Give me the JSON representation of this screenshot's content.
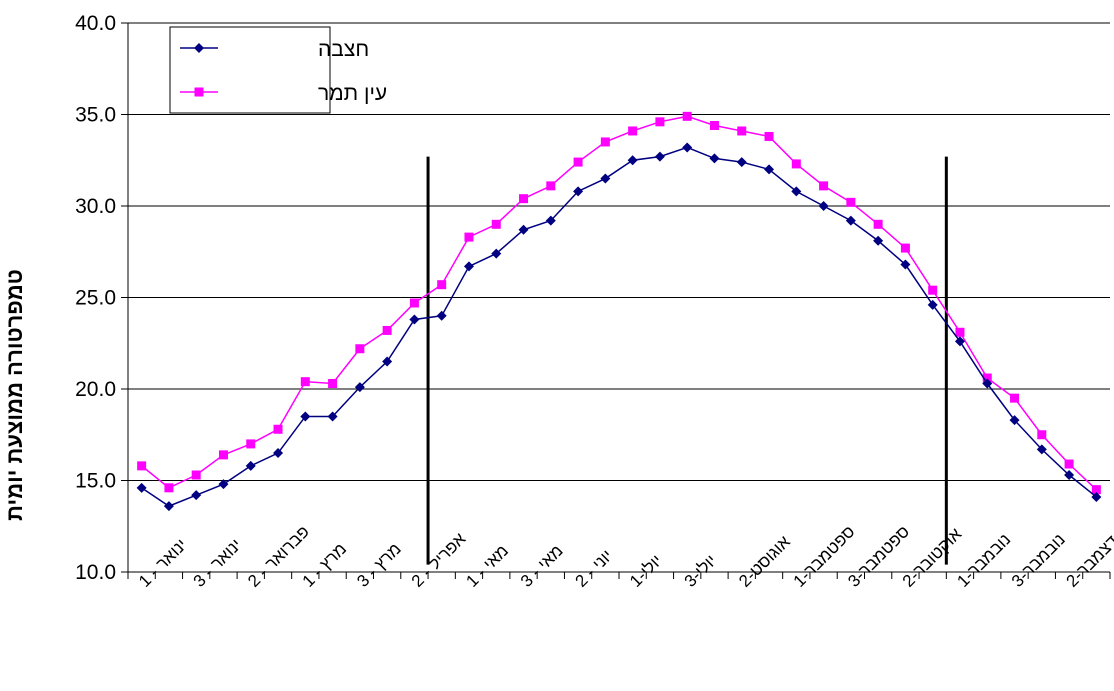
{
  "chart_data": {
    "type": "line",
    "ylabel": "טמפרטורה ממוצעת יומית",
    "xlabel": "",
    "ylim": [
      10,
      40
    ],
    "ytick_step": 5,
    "yticks": [
      "10.0",
      "15.0",
      "20.0",
      "25.0",
      "30.0",
      "35.0",
      "40.0"
    ],
    "grid": "horizontal",
    "legend": "top-left",
    "x_count": 36,
    "x_tick_labels": [
      {
        "index": 0,
        "label": "ינואר - 1"
      },
      {
        "index": 2,
        "label": "ינואר - 3"
      },
      {
        "index": 4,
        "label": "פברואר - 2"
      },
      {
        "index": 6,
        "label": "מרץ - 1"
      },
      {
        "index": 8,
        "label": "מרץ - 3"
      },
      {
        "index": 10,
        "label": "אפריל - 2"
      },
      {
        "index": 12,
        "label": "מאי - 1"
      },
      {
        "index": 14,
        "label": "מאי - 3"
      },
      {
        "index": 16,
        "label": "יוני - 2"
      },
      {
        "index": 18,
        "label": "יולי-1"
      },
      {
        "index": 20,
        "label": "יולי-3"
      },
      {
        "index": 22,
        "label": "אוגוסט-2"
      },
      {
        "index": 24,
        "label": "ספטמבר-1"
      },
      {
        "index": 26,
        "label": "ספטמבר-3"
      },
      {
        "index": 28,
        "label": "אוקטובר-2"
      },
      {
        "index": 30,
        "label": "נובמבר-1"
      },
      {
        "index": 32,
        "label": "נובמבר-3"
      },
      {
        "index": 34,
        "label": "דצמבר-2"
      }
    ],
    "vertical_markers_at": [
      10.5,
      29.5
    ],
    "series": [
      {
        "name": "חצבה",
        "color": "#000080",
        "marker": "diamond",
        "values": [
          14.6,
          13.6,
          14.2,
          14.8,
          15.8,
          16.5,
          18.5,
          18.5,
          20.1,
          21.5,
          23.8,
          24.0,
          26.7,
          27.4,
          28.7,
          29.2,
          30.8,
          31.5,
          32.5,
          32.7,
          33.2,
          32.6,
          32.4,
          32.0,
          30.8,
          30.0,
          29.2,
          28.1,
          26.8,
          24.6,
          22.6,
          20.3,
          18.3,
          16.7,
          15.3,
          14.1
        ]
      },
      {
        "name": "עין תמר",
        "color": "#ff00ff",
        "marker": "square",
        "values": [
          15.8,
          14.6,
          15.3,
          16.4,
          17.0,
          17.8,
          20.4,
          20.3,
          22.2,
          23.2,
          24.7,
          25.7,
          28.3,
          29.0,
          30.4,
          31.1,
          32.4,
          33.5,
          34.1,
          34.6,
          34.9,
          34.4,
          34.1,
          33.8,
          32.3,
          31.1,
          30.2,
          29.0,
          27.7,
          25.4,
          23.1,
          20.6,
          19.5,
          17.5,
          15.9,
          14.5
        ]
      }
    ]
  }
}
